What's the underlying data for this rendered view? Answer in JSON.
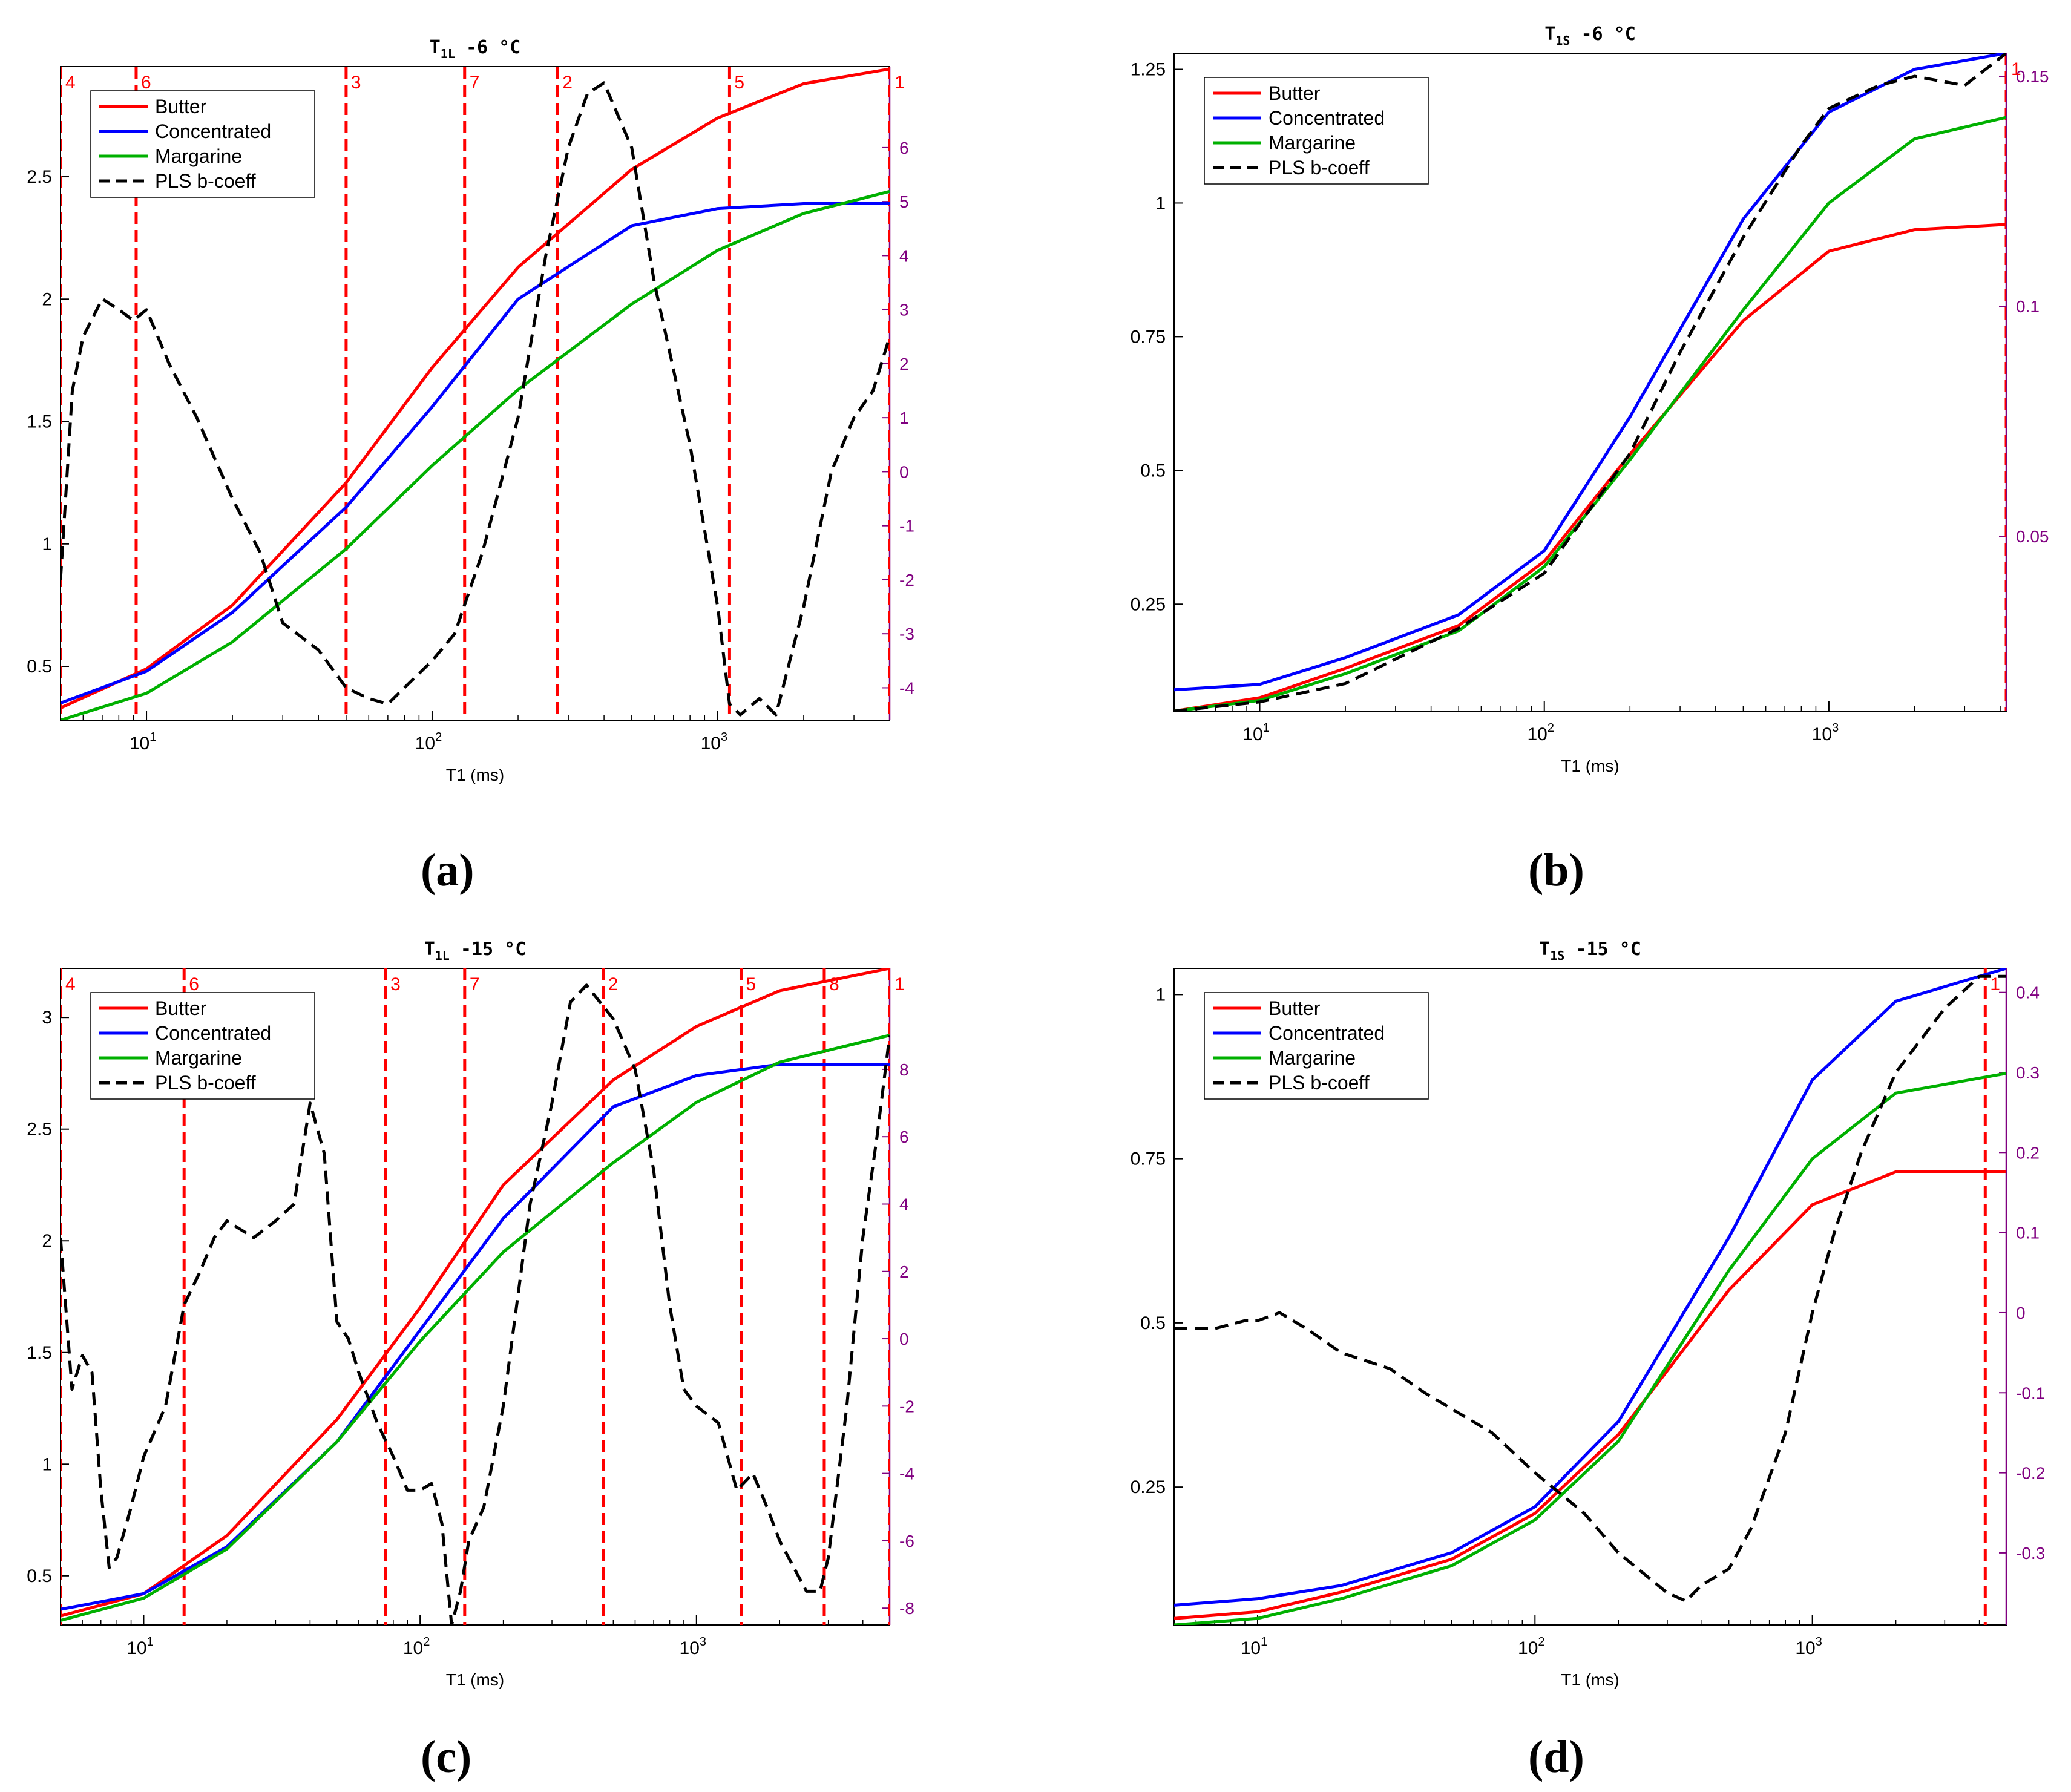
{
  "captions": [
    "(a)",
    "(b)",
    "(c)",
    "(d)"
  ],
  "colors": {
    "butter": "#ff0000",
    "concentrated": "#0000ff",
    "margarine": "#00b000",
    "pls": "#000000",
    "marker": "#ff0000",
    "right_axis": "#800080"
  },
  "chart_data": [
    {
      "id": "a",
      "type": "line",
      "title": "T1L -6 °C",
      "title_main": "T",
      "title_sub": "1L",
      "title_rest": " -6 °C",
      "xlabel": "T1 (ms)",
      "xscale": "log",
      "xlim": [
        5,
        4000
      ],
      "xticks": [
        {
          "v": 10,
          "label": "10",
          "exp": "1"
        },
        {
          "v": 100,
          "label": "10",
          "exp": "2"
        },
        {
          "v": 1000,
          "label": "10",
          "exp": "3"
        }
      ],
      "ylim": [
        0.28,
        2.95
      ],
      "yticks": [
        0.5,
        1,
        1.5,
        2,
        2.5
      ],
      "y2lim": [
        -4.6,
        7.5
      ],
      "y2ticks": [
        -4,
        -3,
        -2,
        -1,
        0,
        1,
        2,
        3,
        4,
        5,
        6
      ],
      "legend": [
        "Butter",
        "Concentrated",
        "Margarine",
        "PLS b-coeff"
      ],
      "legend_position": "top-left",
      "markers": [
        {
          "label": "4",
          "x": 5
        },
        {
          "label": "6",
          "x": 9.2
        },
        {
          "label": "3",
          "x": 50
        },
        {
          "label": "7",
          "x": 130
        },
        {
          "label": "2",
          "x": 275
        },
        {
          "label": "5",
          "x": 1100
        },
        {
          "label": "1",
          "x": 4000
        }
      ],
      "series": [
        {
          "name": "Butter",
          "x": [
            5,
            10,
            20,
            50,
            100,
            200,
            500,
            1000,
            2000,
            4000
          ],
          "y": [
            0.33,
            0.49,
            0.75,
            1.25,
            1.72,
            2.13,
            2.53,
            2.74,
            2.88,
            2.94
          ]
        },
        {
          "name": "Concentrated",
          "x": [
            5,
            10,
            20,
            50,
            100,
            200,
            500,
            1000,
            2000,
            4000
          ],
          "y": [
            0.35,
            0.48,
            0.72,
            1.15,
            1.56,
            2.0,
            2.3,
            2.37,
            2.39,
            2.39
          ]
        },
        {
          "name": "Margarine",
          "x": [
            5,
            10,
            20,
            50,
            100,
            200,
            500,
            1000,
            2000,
            4000
          ],
          "y": [
            0.28,
            0.39,
            0.6,
            0.98,
            1.32,
            1.63,
            1.98,
            2.2,
            2.35,
            2.44
          ]
        },
        {
          "name": "PLS b-coeff",
          "axis": "right",
          "x": [
            5,
            5.5,
            6,
            7,
            8,
            9,
            10,
            12,
            15,
            20,
            25,
            30,
            40,
            50,
            60,
            70,
            80,
            100,
            120,
            150,
            200,
            250,
            300,
            350,
            400,
            500,
            600,
            800,
            1000,
            1100,
            1200,
            1400,
            1600,
            2000,
            2500,
            3000,
            3500,
            4000
          ],
          "y": [
            -2.0,
            1.5,
            2.5,
            3.2,
            3.0,
            2.8,
            3.0,
            2.0,
            1.0,
            -0.5,
            -1.5,
            -2.8,
            -3.3,
            -4.0,
            -4.2,
            -4.3,
            -4.0,
            -3.5,
            -3.0,
            -1.5,
            1.0,
            4.0,
            6.0,
            7.0,
            7.2,
            6.0,
            3.5,
            0.5,
            -2.5,
            -4.3,
            -4.5,
            -4.2,
            -4.5,
            -2.5,
            0.0,
            1.0,
            1.5,
            2.5
          ]
        }
      ]
    },
    {
      "id": "b",
      "type": "line",
      "title": "T1S -6 °C",
      "title_main": "T",
      "title_sub": "1S",
      "title_rest": " -6 °C",
      "xlabel": "T1 (ms)",
      "xscale": "log",
      "xlim": [
        5,
        4200
      ],
      "xticks": [
        {
          "v": 10,
          "label": "10",
          "exp": "1"
        },
        {
          "v": 100,
          "label": "10",
          "exp": "2"
        },
        {
          "v": 1000,
          "label": "10",
          "exp": "3"
        }
      ],
      "ylim": [
        0.05,
        1.28
      ],
      "yticks": [
        0.25,
        0.5,
        0.75,
        1,
        1.25
      ],
      "y2lim": [
        0.012,
        0.155
      ],
      "y2ticks": [
        0.05,
        0.1,
        0.15
      ],
      "legend": [
        "Butter",
        "Concentrated",
        "Margarine",
        "PLS b-coeff"
      ],
      "legend_position": "top-left",
      "markers": [
        {
          "label": "1",
          "x": 4200
        }
      ],
      "series": [
        {
          "name": "Butter",
          "x": [
            5,
            10,
            20,
            50,
            100,
            200,
            500,
            1000,
            2000,
            4200
          ],
          "y": [
            0.05,
            0.075,
            0.13,
            0.21,
            0.33,
            0.53,
            0.78,
            0.91,
            0.95,
            0.96
          ]
        },
        {
          "name": "Concentrated",
          "x": [
            5,
            10,
            20,
            50,
            100,
            200,
            500,
            1000,
            2000,
            4200
          ],
          "y": [
            0.09,
            0.1,
            0.15,
            0.23,
            0.35,
            0.6,
            0.97,
            1.17,
            1.25,
            1.28
          ]
        },
        {
          "name": "Margarine",
          "x": [
            5,
            10,
            20,
            50,
            100,
            200,
            500,
            1000,
            2000,
            4200
          ],
          "y": [
            0.05,
            0.07,
            0.12,
            0.2,
            0.32,
            0.52,
            0.8,
            1.0,
            1.12,
            1.16
          ]
        },
        {
          "name": "PLS b-coeff",
          "axis": "right",
          "x": [
            5,
            10,
            20,
            50,
            100,
            200,
            300,
            500,
            800,
            1000,
            1500,
            2000,
            3000,
            4200
          ],
          "y": [
            0.012,
            0.014,
            0.018,
            0.03,
            0.042,
            0.068,
            0.09,
            0.115,
            0.135,
            0.143,
            0.148,
            0.15,
            0.148,
            0.155
          ]
        }
      ]
    },
    {
      "id": "c",
      "type": "line",
      "title": "T1L -15 °C",
      "title_main": "T",
      "title_sub": "1L",
      "title_rest": " -15 °C",
      "xlabel": "T1 (ms)",
      "xscale": "log",
      "xlim": [
        5,
        5000
      ],
      "xticks": [
        {
          "v": 10,
          "label": "10",
          "exp": "1"
        },
        {
          "v": 100,
          "label": "10",
          "exp": "2"
        },
        {
          "v": 1000,
          "label": "10",
          "exp": "3"
        }
      ],
      "ylim": [
        0.28,
        3.22
      ],
      "yticks": [
        0.5,
        1,
        1.5,
        2,
        2.5,
        3
      ],
      "y2lim": [
        -8.5,
        11
      ],
      "y2ticks": [
        -8,
        -6,
        -4,
        -2,
        0,
        2,
        4,
        6,
        8
      ],
      "legend": [
        "Butter",
        "Concentrated",
        "Margarine",
        "PLS b-coeff"
      ],
      "legend_position": "top-left",
      "markers": [
        {
          "label": "4",
          "x": 5
        },
        {
          "label": "6",
          "x": 14
        },
        {
          "label": "3",
          "x": 75
        },
        {
          "label": "7",
          "x": 145
        },
        {
          "label": "2",
          "x": 460
        },
        {
          "label": "5",
          "x": 1450
        },
        {
          "label": "8",
          "x": 2900
        },
        {
          "label": "1",
          "x": 5000
        }
      ],
      "series": [
        {
          "name": "Butter",
          "x": [
            5,
            10,
            20,
            50,
            100,
            200,
            500,
            1000,
            2000,
            5000
          ],
          "y": [
            0.32,
            0.42,
            0.68,
            1.2,
            1.7,
            2.25,
            2.72,
            2.96,
            3.12,
            3.22
          ]
        },
        {
          "name": "Concentrated",
          "x": [
            5,
            10,
            20,
            50,
            100,
            200,
            500,
            1000,
            2000,
            5000
          ],
          "y": [
            0.35,
            0.42,
            0.63,
            1.1,
            1.6,
            2.1,
            2.6,
            2.74,
            2.79,
            2.79
          ]
        },
        {
          "name": "Margarine",
          "x": [
            5,
            10,
            20,
            50,
            100,
            200,
            500,
            1000,
            2000,
            5000
          ],
          "y": [
            0.3,
            0.4,
            0.62,
            1.1,
            1.55,
            1.95,
            2.35,
            2.62,
            2.8,
            2.92
          ]
        },
        {
          "name": "PLS b-coeff",
          "axis": "right",
          "x": [
            5,
            5.5,
            6,
            6.5,
            7,
            7.5,
            8,
            9,
            10,
            12,
            14,
            16,
            18,
            20,
            25,
            30,
            35,
            40,
            45,
            50,
            55,
            60,
            70,
            80,
            90,
            100,
            110,
            120,
            130,
            140,
            150,
            170,
            200,
            250,
            300,
            350,
            400,
            500,
            600,
            700,
            800,
            900,
            1000,
            1200,
            1400,
            1600,
            1800,
            2000,
            2500,
            2800,
            3000,
            3500,
            4000,
            4500,
            5000
          ],
          "y": [
            3,
            -1.5,
            -0.5,
            -1.0,
            -4.5,
            -6.8,
            -6.5,
            -5.0,
            -3.5,
            -2.0,
            1.0,
            2.0,
            3.0,
            3.5,
            3.0,
            3.5,
            4.0,
            7.0,
            5.5,
            0.5,
            0.0,
            -1.0,
            -2.5,
            -3.5,
            -4.5,
            -4.5,
            -4.3,
            -5.5,
            -8.5,
            -7.5,
            -6.0,
            -5.0,
            -2.0,
            4.0,
            7.0,
            10.0,
            10.5,
            9.5,
            8.0,
            5.0,
            1.0,
            -1.5,
            -2.0,
            -2.5,
            -4.5,
            -4.0,
            -5.0,
            -6.0,
            -7.5,
            -7.5,
            -6.5,
            -2.0,
            3.0,
            6.0,
            9.0
          ]
        }
      ]
    },
    {
      "id": "d",
      "type": "line",
      "title": "T1S -15 °C",
      "title_main": "T",
      "title_sub": "1S",
      "title_rest": " -15 °C",
      "xlabel": "T1 (ms)",
      "xscale": "log",
      "xlim": [
        5,
        5000
      ],
      "xticks": [
        {
          "v": 10,
          "label": "10",
          "exp": "1"
        },
        {
          "v": 100,
          "label": "10",
          "exp": "2"
        },
        {
          "v": 1000,
          "label": "10",
          "exp": "3"
        }
      ],
      "ylim": [
        0.04,
        1.04
      ],
      "yticks": [
        0.25,
        0.5,
        0.75,
        1
      ],
      "y2lim": [
        -0.39,
        0.43
      ],
      "y2ticks": [
        -0.3,
        -0.2,
        -0.1,
        0,
        0.1,
        0.2,
        0.3,
        0.4
      ],
      "legend": [
        "Butter",
        "Concentrated",
        "Margarine",
        "PLS b-coeff"
      ],
      "legend_position": "top-left",
      "markers": [
        {
          "label": "1",
          "x": 4200
        }
      ],
      "series": [
        {
          "name": "Butter",
          "x": [
            5,
            10,
            20,
            50,
            100,
            200,
            500,
            1000,
            2000,
            5000
          ],
          "y": [
            0.05,
            0.06,
            0.09,
            0.14,
            0.21,
            0.33,
            0.55,
            0.68,
            0.73,
            0.73
          ]
        },
        {
          "name": "Concentrated",
          "x": [
            5,
            10,
            20,
            50,
            100,
            200,
            500,
            1000,
            2000,
            5000
          ],
          "y": [
            0.07,
            0.08,
            0.1,
            0.15,
            0.22,
            0.35,
            0.63,
            0.87,
            0.99,
            1.04
          ]
        },
        {
          "name": "Margarine",
          "x": [
            5,
            10,
            20,
            50,
            100,
            200,
            500,
            1000,
            2000,
            5000
          ],
          "y": [
            0.04,
            0.05,
            0.08,
            0.13,
            0.2,
            0.32,
            0.58,
            0.75,
            0.85,
            0.88
          ]
        },
        {
          "name": "PLS b-coeff",
          "axis": "right",
          "x": [
            5,
            7,
            9,
            10,
            12,
            15,
            20,
            30,
            40,
            50,
            70,
            100,
            150,
            200,
            300,
            350,
            400,
            500,
            600,
            800,
            1000,
            1200,
            1500,
            2000,
            3000,
            4000,
            5000
          ],
          "y": [
            -0.02,
            -0.02,
            -0.01,
            -0.01,
            0.0,
            -0.02,
            -0.05,
            -0.07,
            -0.1,
            -0.12,
            -0.15,
            -0.2,
            -0.25,
            -0.3,
            -0.35,
            -0.36,
            -0.34,
            -0.32,
            -0.27,
            -0.15,
            0.0,
            0.1,
            0.2,
            0.3,
            0.38,
            0.42,
            0.42
          ]
        }
      ]
    }
  ]
}
